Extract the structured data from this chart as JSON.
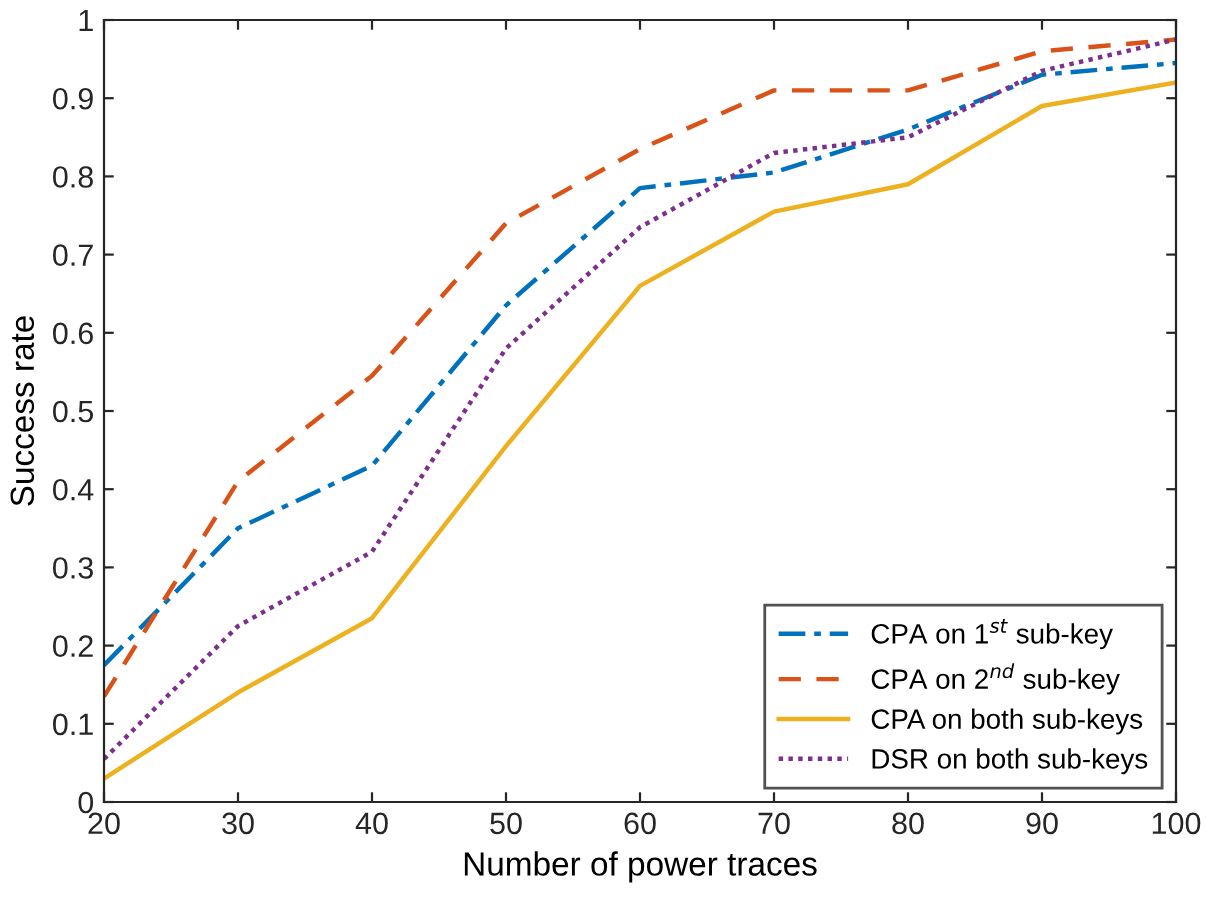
{
  "chart_data": {
    "type": "line",
    "xlabel": "Number of power traces",
    "ylabel": "Success rate",
    "x": [
      20,
      30,
      40,
      50,
      60,
      70,
      80,
      90,
      100
    ],
    "series": [
      {
        "name": "CPA on 1$^{st}$ sub-key",
        "color": "#0072bd",
        "line_style": "dashdot",
        "values": [
          0.175,
          0.35,
          0.43,
          0.635,
          0.785,
          0.805,
          0.86,
          0.93,
          0.945
        ]
      },
      {
        "name": "CPA on 2$^{nd}$ sub-key",
        "color": "#d95319",
        "line_style": "dashed",
        "values": [
          0.135,
          0.41,
          0.545,
          0.74,
          0.835,
          0.91,
          0.91,
          0.96,
          0.975
        ]
      },
      {
        "name": "CPA on both sub-keys",
        "color": "#edb120",
        "line_style": "solid",
        "values": [
          0.03,
          0.14,
          0.235,
          0.455,
          0.66,
          0.755,
          0.79,
          0.89,
          0.92
        ]
      },
      {
        "name": "DSR on both sub-keys",
        "color": "#7e2f8e",
        "line_style": "dotted",
        "values": [
          0.055,
          0.225,
          0.32,
          0.58,
          0.735,
          0.83,
          0.85,
          0.935,
          0.975
        ]
      }
    ],
    "xlim": [
      20,
      100
    ],
    "xticks": [
      20,
      30,
      40,
      50,
      60,
      70,
      80,
      90,
      100
    ],
    "ylim": [
      0,
      1
    ],
    "yticks": [
      0,
      0.1,
      0.2,
      0.3,
      0.4,
      0.5,
      0.6,
      0.7,
      0.8,
      0.9,
      1
    ],
    "grid": false,
    "legend": "bottom right",
    "marker": "none"
  }
}
